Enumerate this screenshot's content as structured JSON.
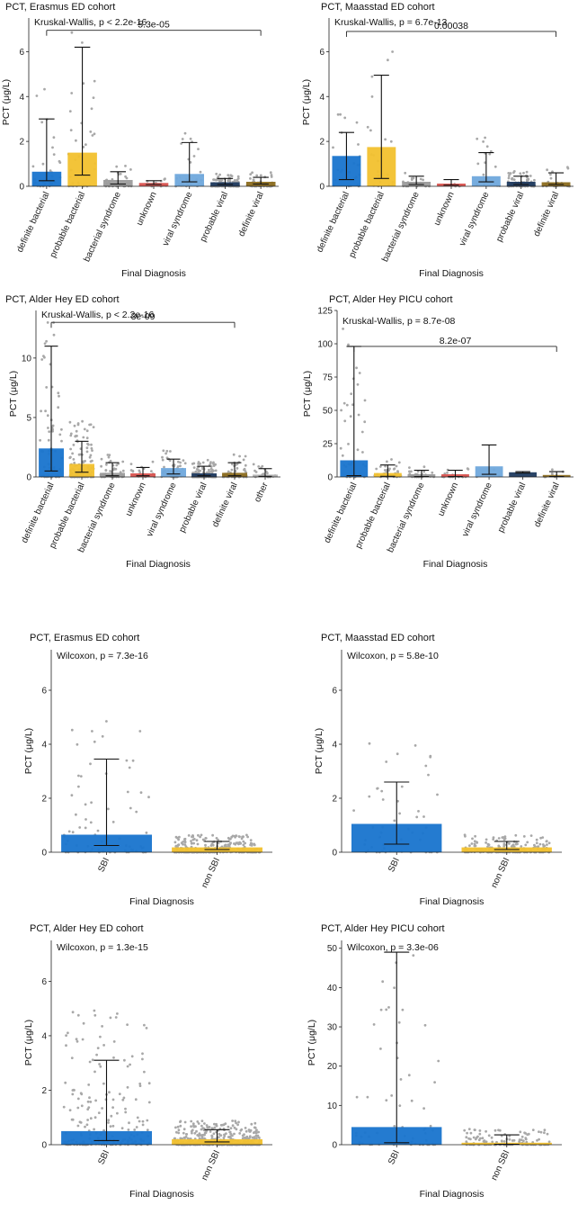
{
  "colors": {
    "definite bacterial": "#1874cd",
    "probable bacterial": "#f2c12e",
    "bacterial syndrome": "#9b9b9b",
    "unknown": "#d9534f",
    "viral syndrome": "#6fa8dc",
    "probable viral": "#1f3a5f",
    "definite viral": "#8c6d1f",
    "other": "#b0b0b0",
    "SBI": "#1874cd",
    "non SBI": "#f2c12e",
    "points": "#a8a8a8"
  },
  "chart_data": [
    {
      "type": "bar",
      "title": "PCT, Erasmus ED cohort",
      "test": "Kruskal-Wallis, p < 2.2e-16",
      "xlabel": "Final Diagnosis",
      "ylabel": "PCT (μg/L)",
      "ylim": [
        0,
        7.5
      ],
      "yticks": [
        0,
        2,
        4,
        6
      ],
      "categories": [
        "definite bacterial",
        "probable bacterial",
        "bacterial syndrome",
        "unknown",
        "viral syndrome",
        "probable viral",
        "definite viral"
      ],
      "values": [
        0.65,
        1.5,
        0.28,
        0.15,
        0.55,
        0.18,
        0.2
      ],
      "err_low": [
        0.25,
        0.5,
        0.1,
        0.08,
        0.2,
        0.08,
        0.1
      ],
      "err_high": [
        3.0,
        6.2,
        0.65,
        0.25,
        1.95,
        0.35,
        0.4
      ],
      "npoints": [
        30,
        40,
        25,
        12,
        30,
        120,
        40
      ],
      "bracket": {
        "from": 0,
        "to": 6,
        "label": "5.3e-05",
        "y": 6.95
      }
    },
    {
      "type": "bar",
      "title": "PCT, Maasstad ED cohort",
      "test": "Kruskal-Wallis, p = 6.7e-13",
      "xlabel": "Final Diagnosis",
      "ylabel": "PCT (μg/L)",
      "ylim": [
        0,
        7.5
      ],
      "yticks": [
        0,
        2,
        4,
        6
      ],
      "categories": [
        "definite bacterial",
        "probable bacterial",
        "bacterial syndrome",
        "unknown",
        "viral syndrome",
        "probable viral",
        "definite viral"
      ],
      "values": [
        1.35,
        1.75,
        0.2,
        0.12,
        0.45,
        0.2,
        0.18
      ],
      "err_low": [
        0.3,
        0.35,
        0.08,
        0.05,
        0.2,
        0.08,
        0.08
      ],
      "err_high": [
        2.4,
        4.95,
        0.45,
        0.3,
        1.5,
        0.45,
        0.6
      ],
      "npoints": [
        25,
        20,
        20,
        6,
        18,
        80,
        25
      ],
      "bracket": {
        "from": 0,
        "to": 6,
        "label": "0.00038",
        "y": 6.9
      }
    },
    {
      "type": "bar",
      "title": "PCT, Alder Hey ED cohort",
      "test": "Kruskal-Wallis, p < 2.2e-16",
      "xlabel": "Final Diagnosis",
      "ylabel": "PCT (μg/L)",
      "ylim": [
        0,
        14
      ],
      "yticks": [
        0,
        5,
        10
      ],
      "categories": [
        "definite bacterial",
        "probable bacterial",
        "bacterial syndrome",
        "unknown",
        "viral syndrome",
        "probable viral",
        "definite viral",
        "other"
      ],
      "values": [
        2.4,
        1.1,
        0.35,
        0.3,
        0.75,
        0.3,
        0.35,
        0.2
      ],
      "err_low": [
        0.5,
        0.4,
        0.1,
        0.1,
        0.25,
        0.1,
        0.1,
        0.05
      ],
      "err_high": [
        11.0,
        3.0,
        1.2,
        0.8,
        1.5,
        0.9,
        1.2,
        0.7
      ],
      "npoints": [
        60,
        120,
        40,
        15,
        50,
        140,
        50,
        20
      ],
      "bracket": {
        "from": 0,
        "to": 6,
        "label": "3e-09",
        "y": 13.0
      }
    },
    {
      "type": "bar",
      "title": "PCT, Alder Hey PICU cohort",
      "test": "Kruskal-Wallis, p = 8.7e-08",
      "xlabel": "Final Diagnosis",
      "ylabel": "PCT (μg/L)",
      "ylim": [
        0,
        125
      ],
      "yticks": [
        0,
        25,
        50,
        75,
        100,
        125
      ],
      "categories": [
        "definite bacterial",
        "probable bacterial",
        "bacterial syndrome",
        "unknown",
        "viral syndrome",
        "probable viral",
        "definite viral"
      ],
      "values": [
        12.5,
        3.0,
        2.0,
        2.0,
        8.0,
        3.5,
        1.5
      ],
      "err_low": [
        1.0,
        0.5,
        0.3,
        0.3,
        2.0,
        3.0,
        0.3
      ],
      "err_high": [
        98,
        9,
        5,
        5,
        24,
        4,
        4
      ],
      "npoints": [
        35,
        30,
        25,
        25,
        3,
        0,
        8
      ],
      "bracket": {
        "from": 0,
        "to": 6,
        "label": "8.2e-07",
        "y": 98
      }
    },
    {
      "type": "bar",
      "title": "PCT, Erasmus ED cohort",
      "test": "Wilcoxon, p = 7.3e-16",
      "xlabel": "Final Diagnosis",
      "ylabel": "PCT (μg/L)",
      "ylim": [
        0,
        7.5
      ],
      "yticks": [
        0,
        2,
        4,
        6
      ],
      "categories": [
        "SBI",
        "non SBI"
      ],
      "values": [
        0.65,
        0.18
      ],
      "err_low": [
        0.25,
        0.1
      ],
      "err_high": [
        3.45,
        0.4
      ],
      "npoints": [
        70,
        280
      ]
    },
    {
      "type": "bar",
      "title": "PCT, Maasstad ED cohort",
      "test": "Wilcoxon, p = 5.8e-10",
      "xlabel": "Final Diagnosis",
      "ylabel": "PCT (μg/L)",
      "ylim": [
        0,
        7.5
      ],
      "yticks": [
        0,
        2,
        4,
        6
      ],
      "categories": [
        "SBI",
        "non SBI"
      ],
      "values": [
        1.05,
        0.18
      ],
      "err_low": [
        0.3,
        0.1
      ],
      "err_high": [
        2.6,
        0.4
      ],
      "npoints": [
        50,
        180
      ]
    },
    {
      "type": "bar",
      "title": "PCT, Alder Hey ED cohort",
      "test": "Wilcoxon, p = 1.3e-15",
      "xlabel": "Final Diagnosis",
      "ylabel": "PCT (μg/L)",
      "ylim": [
        0,
        7.5
      ],
      "yticks": [
        0,
        2,
        4,
        6
      ],
      "categories": [
        "SBI",
        "non SBI"
      ],
      "values": [
        0.5,
        0.2
      ],
      "err_low": [
        0.15,
        0.1
      ],
      "err_high": [
        3.1,
        0.55
      ],
      "npoints": [
        200,
        420
      ]
    },
    {
      "type": "bar",
      "title": "PCT, Alder Hey PICU cohort",
      "test": "Wilcoxon, p = 3.3e-06",
      "xlabel": "Final Diagnosis",
      "ylabel": "PCT (μg/L)",
      "ylim": [
        0,
        52
      ],
      "yticks": [
        0,
        10,
        20,
        30,
        40,
        50
      ],
      "categories": [
        "SBI",
        "non SBI"
      ],
      "values": [
        4.5,
        0.5
      ],
      "err_low": [
        0.5,
        0.1
      ],
      "err_high": [
        49,
        2.5
      ],
      "npoints": [
        60,
        120
      ]
    }
  ]
}
